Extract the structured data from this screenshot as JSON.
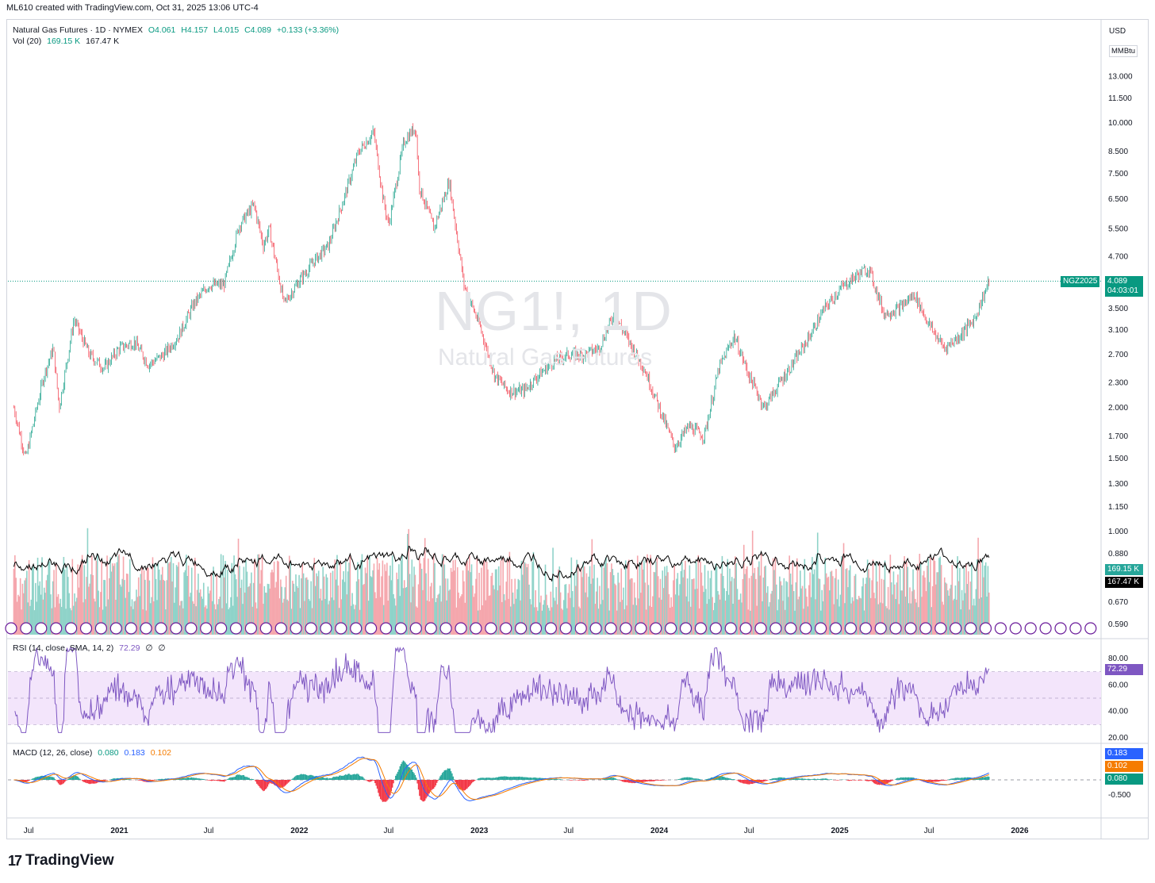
{
  "header": {
    "credit": "ML610 created with TradingView.com, Oct 31, 2025 13:06 UTC-4"
  },
  "symbol": {
    "title": "Natural Gas Futures · 1D · NYMEX",
    "open": "O4.061",
    "high": "H4.157",
    "low": "L4.015",
    "close": "C4.089",
    "change": "+0.133 (+3.36%)",
    "watermark": "NG1!, 1D",
    "watermark_sub": "Natural Gas Futures"
  },
  "volume_legend": {
    "label": "Vol (20)",
    "v1": "169.15 K",
    "v2": "167.47 K"
  },
  "rsi_legend": {
    "label": "RSI (14, close, SMA, 14, 2)",
    "value": "72.29",
    "e1": "∅",
    "e2": "∅"
  },
  "macd_legend": {
    "label": "MACD (12, 26, close)",
    "v1": "0.080",
    "v2": "0.183",
    "v3": "0.102"
  },
  "price_axis": {
    "currency": "USD",
    "unit": "MMBtu"
  },
  "tags": {
    "contract": "NGZ2025",
    "price": "4.089",
    "countdown": "04:03:01",
    "vol1": "169.15 K",
    "vol2": "167.47 K",
    "rsi": "72.29",
    "macd1": "0.183",
    "macd2": "0.102",
    "macd3": "0.080"
  },
  "brand": {
    "name": "TradingView",
    "logo": "17"
  },
  "colors": {
    "up": "#089981",
    "down": "#f23645",
    "rsi": "#7e57c2",
    "rsi_band": "#f3e5fb",
    "macd": "#2962ff",
    "signal": "#f57c00",
    "ma": "#000000"
  },
  "chart_data": {
    "type": "candlestick",
    "scale": "log",
    "x_ticks": [
      "Jul",
      "2021",
      "Jul",
      "2022",
      "Jul",
      "2023",
      "Jul",
      "2024",
      "Jul",
      "2025",
      "Jul",
      "2026"
    ],
    "y_ticks": [
      "13.000",
      "11.500",
      "10.000",
      "8.500",
      "7.500",
      "6.500",
      "5.500",
      "4.700",
      "4.100",
      "3.500",
      "3.100",
      "2.700",
      "2.300",
      "2.000",
      "1.700",
      "1.500",
      "1.300",
      "1.150",
      "1.000",
      "0.880",
      "0.670",
      "0.590"
    ],
    "price_path": [
      {
        "t": "2020-06",
        "p": 2.0
      },
      {
        "t": "2020-06-25",
        "p": 1.5
      },
      {
        "t": "2020-08",
        "p": 2.4
      },
      {
        "t": "2020-08-20",
        "p": 2.8
      },
      {
        "t": "2020-09",
        "p": 2.0
      },
      {
        "t": "2020-10",
        "p": 3.3
      },
      {
        "t": "2020-11",
        "p": 2.7
      },
      {
        "t": "2020-12",
        "p": 2.5
      },
      {
        "t": "2021-01",
        "p": 2.8
      },
      {
        "t": "2021-02",
        "p": 2.9
      },
      {
        "t": "2021-03",
        "p": 2.55
      },
      {
        "t": "2021-04",
        "p": 2.7
      },
      {
        "t": "2021-05",
        "p": 3.0
      },
      {
        "t": "2021-06",
        "p": 3.6
      },
      {
        "t": "2021-07",
        "p": 4.0
      },
      {
        "t": "2021-08",
        "p": 4.0
      },
      {
        "t": "2021-09",
        "p": 5.6
      },
      {
        "t": "2021-10",
        "p": 6.3
      },
      {
        "t": "2021-10-20",
        "p": 5.0
      },
      {
        "t": "2021-11",
        "p": 5.5
      },
      {
        "t": "2021-12",
        "p": 3.6
      },
      {
        "t": "2022-01",
        "p": 4.1
      },
      {
        "t": "2022-02",
        "p": 4.6
      },
      {
        "t": "2022-03",
        "p": 5.0
      },
      {
        "t": "2022-04",
        "p": 6.5
      },
      {
        "t": "2022-05",
        "p": 8.5
      },
      {
        "t": "2022-06",
        "p": 9.5
      },
      {
        "t": "2022-06-20",
        "p": 6.5
      },
      {
        "t": "2022-07",
        "p": 5.6
      },
      {
        "t": "2022-08",
        "p": 9.0
      },
      {
        "t": "2022-08-25",
        "p": 9.8
      },
      {
        "t": "2022-09",
        "p": 7.0
      },
      {
        "t": "2022-10",
        "p": 5.5
      },
      {
        "t": "2022-11",
        "p": 7.2
      },
      {
        "t": "2022-12",
        "p": 4.0
      },
      {
        "t": "2023-01",
        "p": 3.2
      },
      {
        "t": "2023-02",
        "p": 2.4
      },
      {
        "t": "2023-03",
        "p": 2.2
      },
      {
        "t": "2023-04",
        "p": 2.2
      },
      {
        "t": "2023-05",
        "p": 2.4
      },
      {
        "t": "2023-06",
        "p": 2.6
      },
      {
        "t": "2023-07",
        "p": 2.7
      },
      {
        "t": "2023-08",
        "p": 2.7
      },
      {
        "t": "2023-09",
        "p": 2.8
      },
      {
        "t": "2023-10",
        "p": 3.4
      },
      {
        "t": "2023-11",
        "p": 2.9
      },
      {
        "t": "2023-12",
        "p": 2.5
      },
      {
        "t": "2024-01",
        "p": 2.0
      },
      {
        "t": "2024-02",
        "p": 1.6
      },
      {
        "t": "2024-03",
        "p": 1.8
      },
      {
        "t": "2024-04",
        "p": 1.7
      },
      {
        "t": "2024-05",
        "p": 2.5
      },
      {
        "t": "2024-06",
        "p": 3.0
      },
      {
        "t": "2024-07",
        "p": 2.4
      },
      {
        "t": "2024-08",
        "p": 2.0
      },
      {
        "t": "2024-09",
        "p": 2.3
      },
      {
        "t": "2024-10",
        "p": 2.6
      },
      {
        "t": "2024-11",
        "p": 3.0
      },
      {
        "t": "2024-12",
        "p": 3.5
      },
      {
        "t": "2025-01",
        "p": 3.9
      },
      {
        "t": "2025-02",
        "p": 4.2
      },
      {
        "t": "2025-03",
        "p": 4.4
      },
      {
        "t": "2025-04",
        "p": 3.4
      },
      {
        "t": "2025-05",
        "p": 3.5
      },
      {
        "t": "2025-06",
        "p": 3.8
      },
      {
        "t": "2025-07",
        "p": 3.2
      },
      {
        "t": "2025-08",
        "p": 2.8
      },
      {
        "t": "2025-09",
        "p": 3.0
      },
      {
        "t": "2025-10",
        "p": 3.3
      },
      {
        "t": "2025-10-31",
        "p": 4.089
      }
    ]
  }
}
